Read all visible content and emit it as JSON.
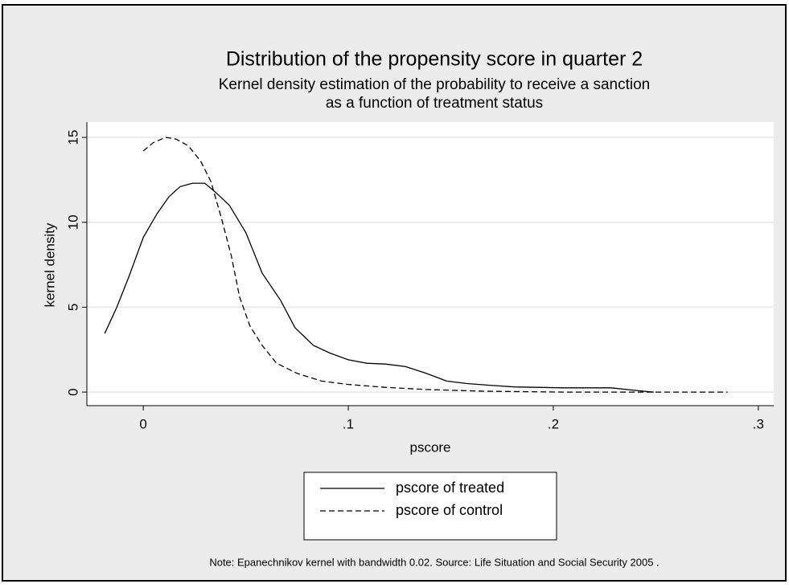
{
  "chart_data": {
    "type": "line",
    "title": "Distribution of the propensity score in quarter 2",
    "subtitle": [
      "Kernel density estimation of the probability to receive a sanction",
      "as a function of treatment status"
    ],
    "xlabel": "pscore",
    "ylabel": "kernel density",
    "note": "Note: Epanechnikov kernel with bandwidth 0.02. Source:  Life Situation and Social Security 2005 .",
    "xlim": [
      -0.0275,
      0.3075
    ],
    "ylim": [
      -0.8,
      15.9
    ],
    "xticks": [
      0,
      {
        "value": 0.1,
        "label": ".1"
      },
      {
        "value": 0.2,
        "label": ".2"
      },
      {
        "value": 0.3,
        "label": ".3"
      }
    ],
    "yticks": [
      0,
      5,
      10,
      15
    ],
    "grid": true,
    "legend_position": "bottom",
    "series": [
      {
        "name": "pscore of treated",
        "color": "#000000",
        "dash": "solid",
        "x": [
          -0.0188,
          -0.013,
          -0.007,
          0,
          0.0067,
          0.0125,
          0.018,
          0.024,
          0.03,
          0.035,
          0.042,
          0.05,
          0.058,
          0.067,
          0.074,
          0.083,
          0.091,
          0.1,
          0.109,
          0.118,
          0.128,
          0.138,
          0.148,
          0.158,
          0.169,
          0.181,
          0.205,
          0.228,
          0.24,
          0.249
        ],
        "values": [
          3.45,
          4.97,
          6.8,
          9.1,
          10.5,
          11.5,
          12.1,
          12.3,
          12.3,
          11.8,
          11.0,
          9.4,
          7.0,
          5.4,
          3.8,
          2.75,
          2.3,
          1.9,
          1.7,
          1.65,
          1.5,
          1.1,
          0.65,
          0.5,
          0.4,
          0.3,
          0.25,
          0.25,
          0.1,
          0
        ]
      },
      {
        "name": "pscore of control",
        "color": "#000000",
        "dash": "dashed",
        "x": [
          0,
          0.005,
          0.011,
          0.016,
          0.022,
          0.028,
          0.033,
          0.038,
          0.043,
          0.047,
          0.052,
          0.058,
          0.065,
          0.075,
          0.087,
          0.1,
          0.118,
          0.138,
          0.166,
          0.205,
          0.244,
          0.285
        ],
        "values": [
          14.2,
          14.7,
          15.0,
          14.9,
          14.5,
          13.6,
          12.4,
          10.3,
          8.0,
          5.6,
          3.9,
          2.75,
          1.7,
          1.1,
          0.65,
          0.45,
          0.28,
          0.15,
          0.05,
          0,
          0,
          0
        ]
      }
    ]
  }
}
